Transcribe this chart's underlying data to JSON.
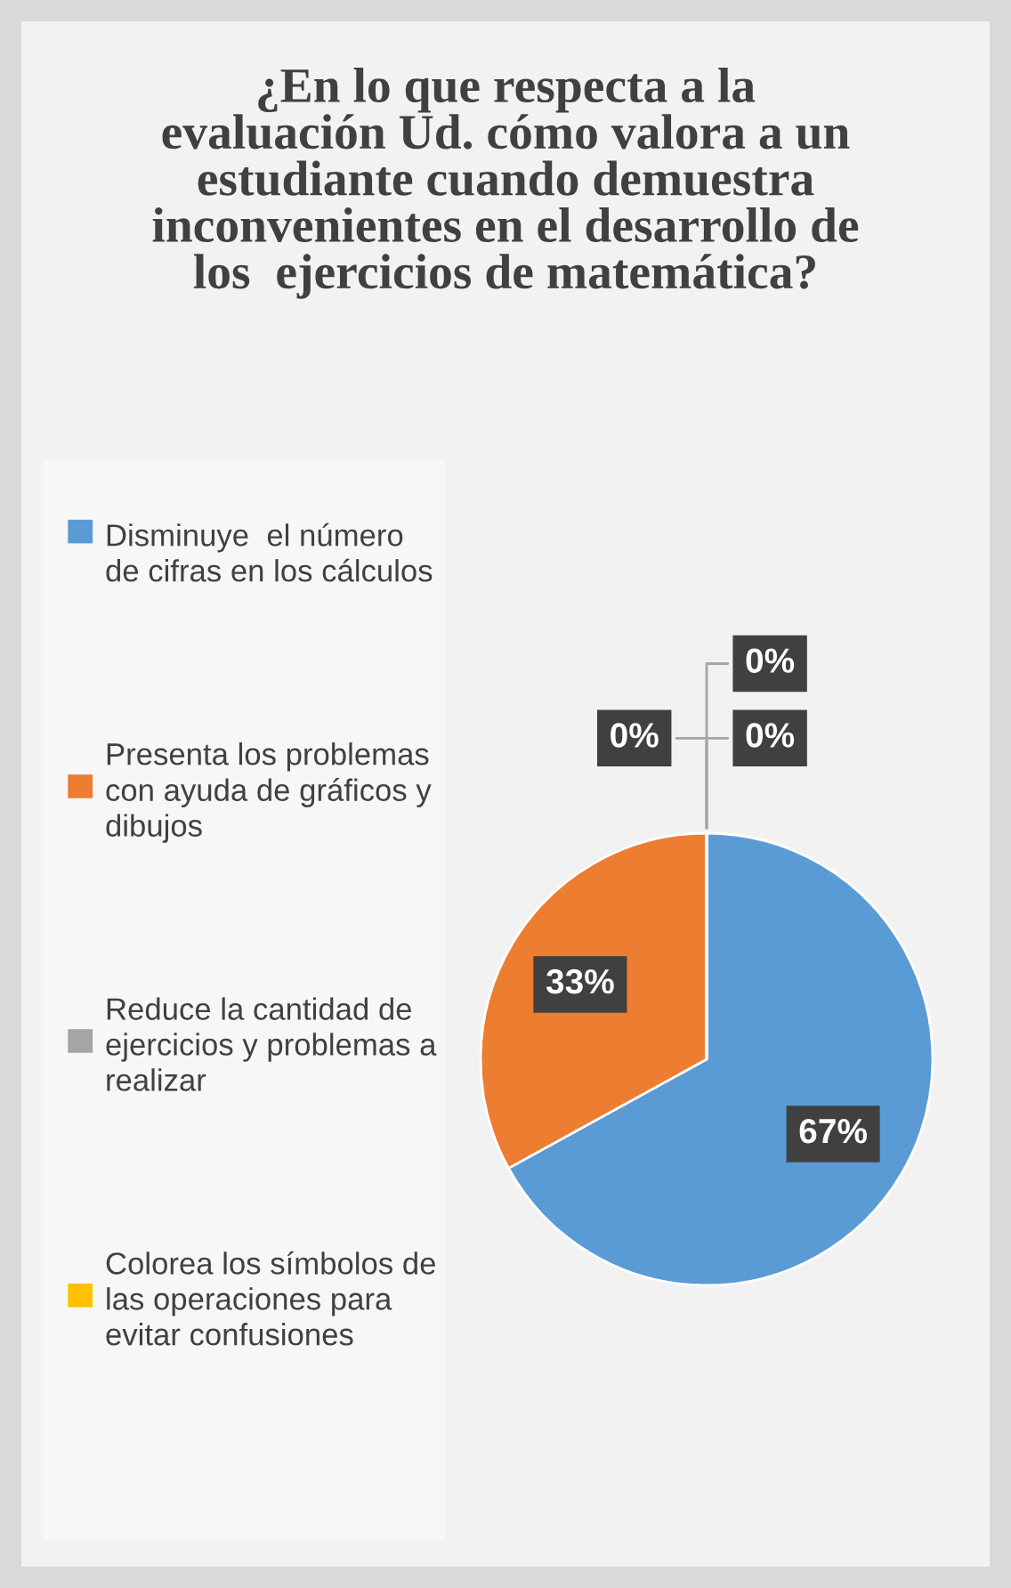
{
  "chart_data": {
    "type": "pie",
    "title": "¿En lo que respecta a la evaluación Ud. cómo valora a un estudiante cuando demuestra inconvenientes en el desarrollo de los  ejercicios de matemática?",
    "categories": [
      "Disminuye  el número de cifras en los cálculos",
      "Presenta los problemas con ayuda de gráficos y dibujos",
      "Reduce la cantidad de ejercicios y problemas a realizar",
      "Colorea los símbolos de las operaciones para evitar confusiones",
      null
    ],
    "values": [
      67,
      33,
      0,
      0,
      0
    ],
    "colors": [
      "#5b9bd5",
      "#ed7d31",
      "#a5a5a5",
      "#ffc000",
      "#4472c4"
    ],
    "value_labels": [
      "67%",
      "33%",
      "0%",
      "0%",
      "0%"
    ],
    "legend": "left"
  }
}
